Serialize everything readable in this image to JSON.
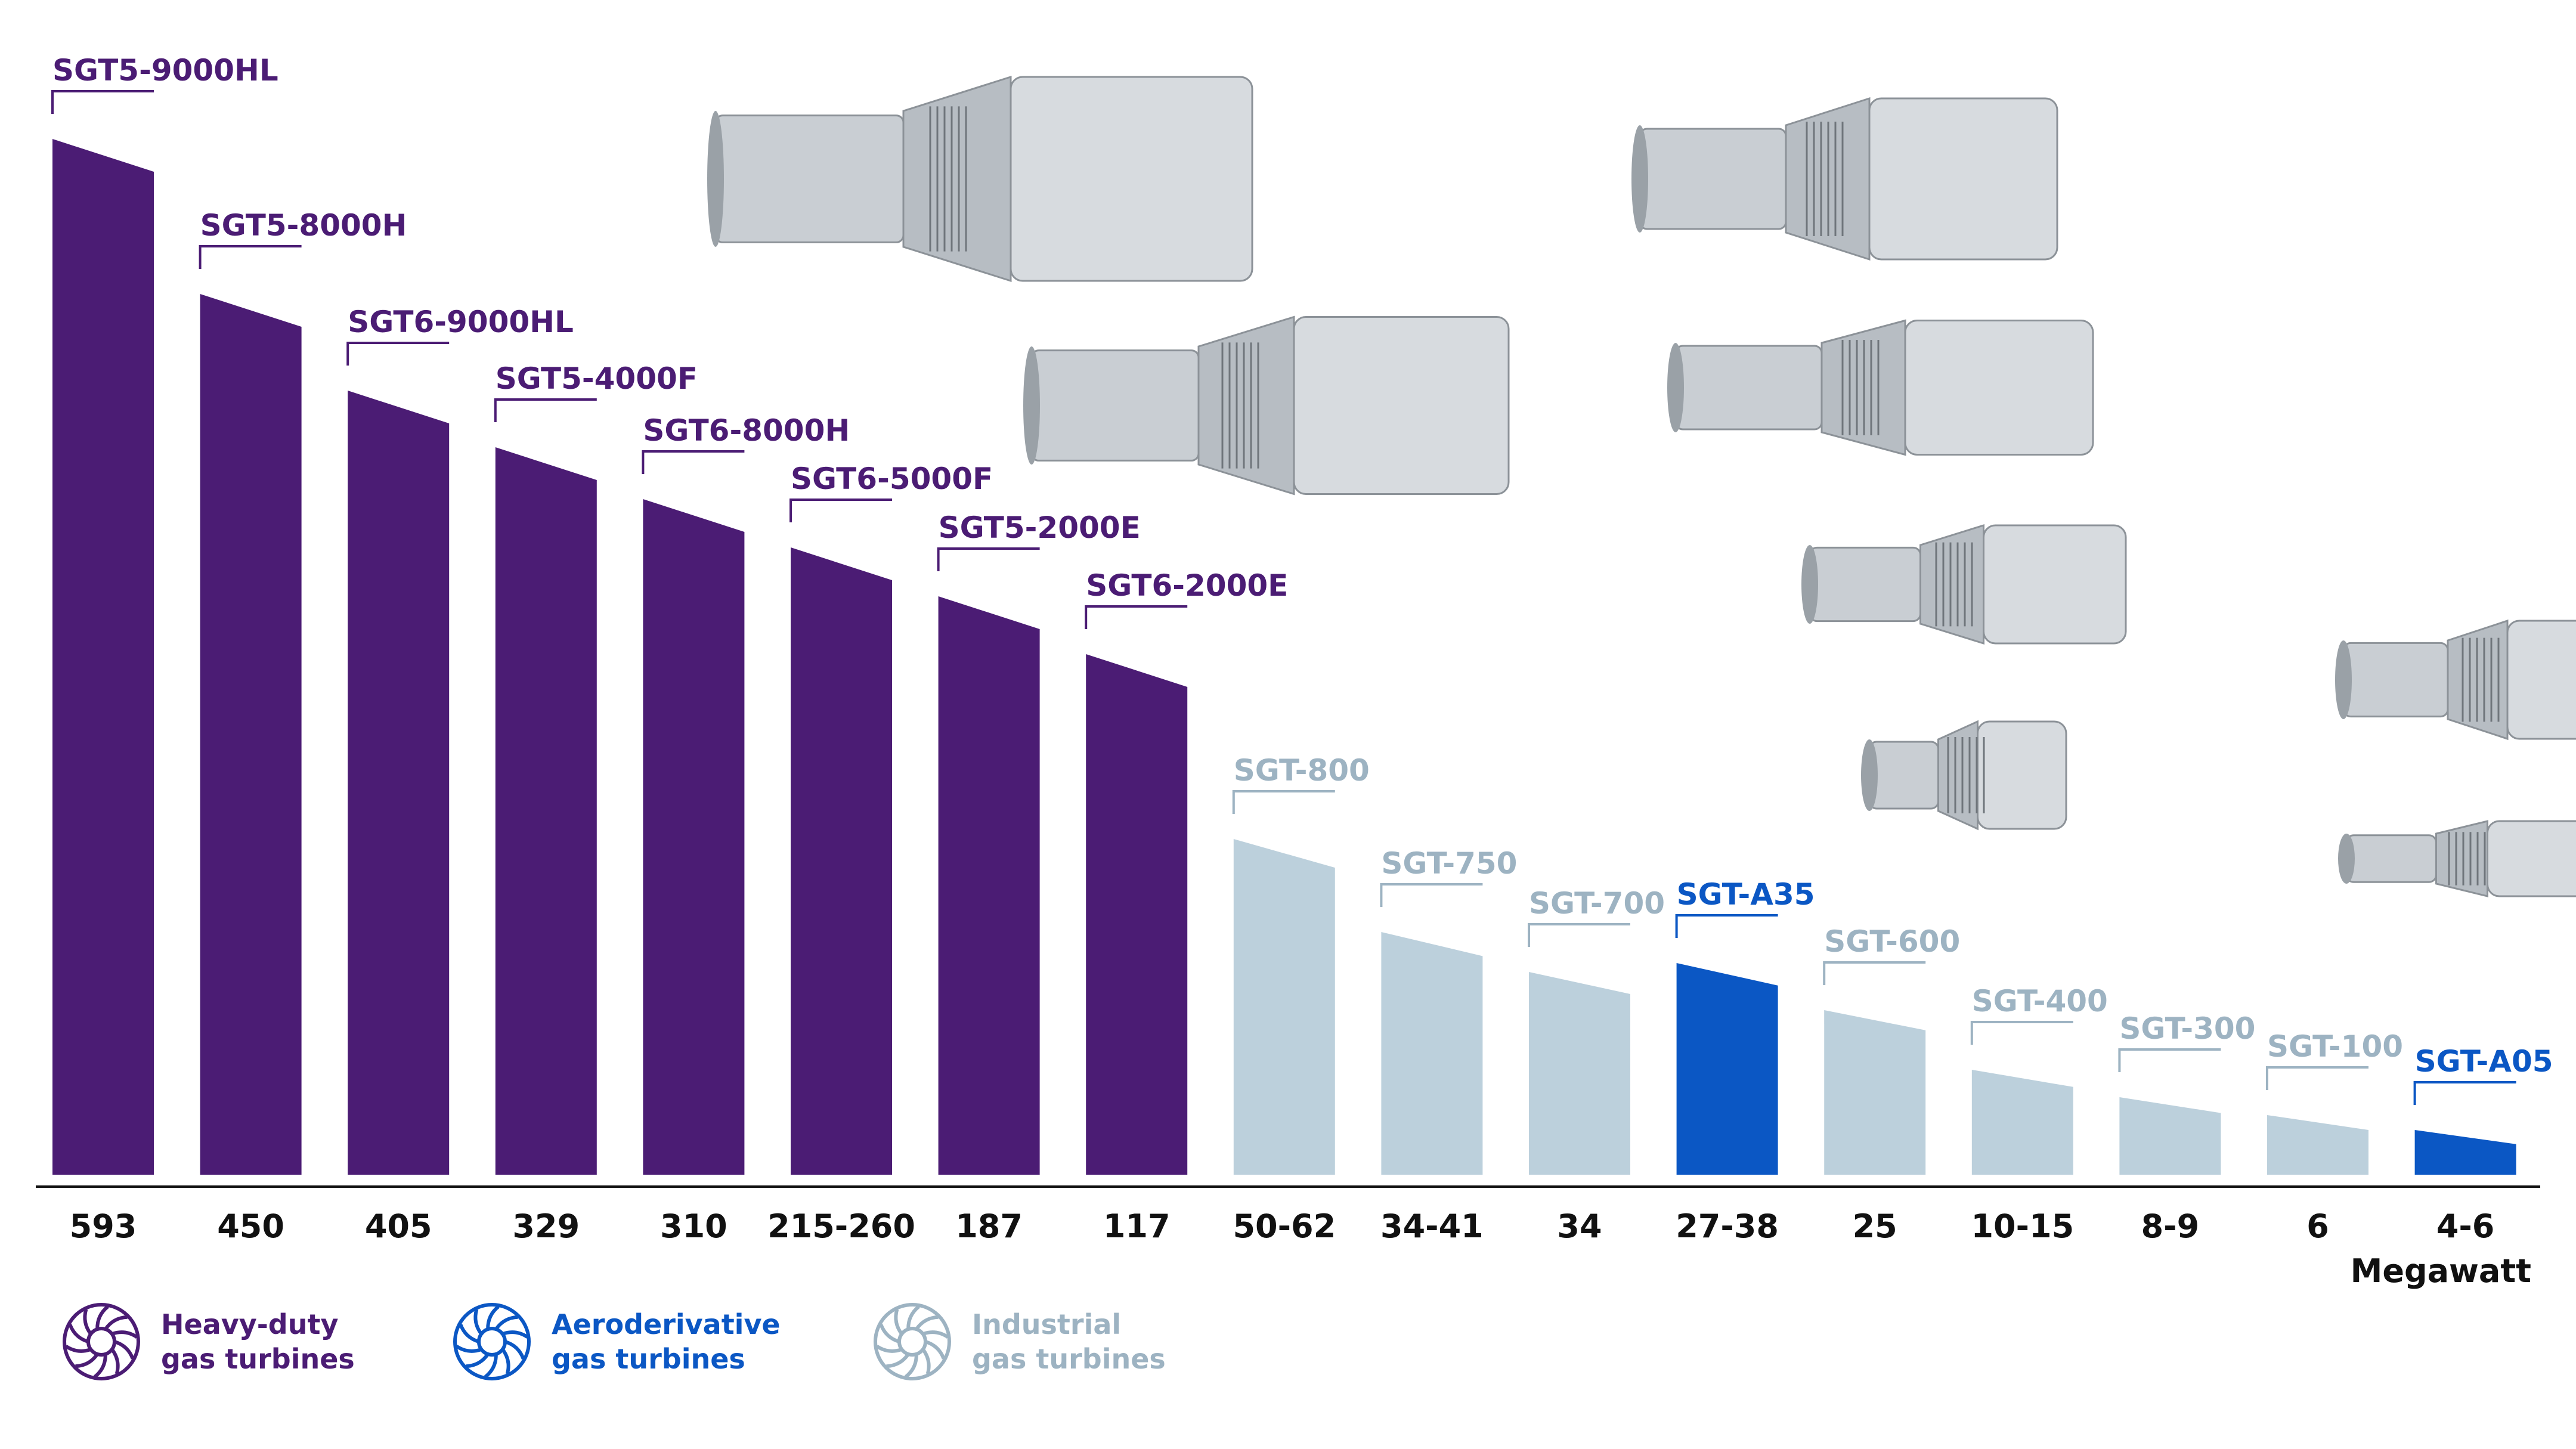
{
  "colors": {
    "heavy_duty": "#4b1c74",
    "aeroderivative": "#0b57c4",
    "industrial": "#bcd0dc",
    "industrial_text": "#9db3c2",
    "axis": "#111111",
    "value_text": "#111111",
    "turbine_metal": "#c9ced3",
    "turbine_dark": "#3a3d42"
  },
  "chart_data": {
    "type": "bar",
    "unit_label": "Megawatt",
    "bars": [
      {
        "name": "SGT5-9000HL",
        "value_label": "593",
        "value": 593,
        "category": "heavy_duty"
      },
      {
        "name": "SGT5-8000H",
        "value_label": "450",
        "value": 450,
        "category": "heavy_duty"
      },
      {
        "name": "SGT6-9000HL",
        "value_label": "405",
        "value": 405,
        "category": "heavy_duty"
      },
      {
        "name": "SGT5-4000F",
        "value_label": "329",
        "value": 329,
        "category": "heavy_duty"
      },
      {
        "name": "SGT6-8000H",
        "value_label": "310",
        "value": 310,
        "category": "heavy_duty"
      },
      {
        "name": "SGT6-5000F",
        "value_label": "215-260",
        "value": 260,
        "category": "heavy_duty"
      },
      {
        "name": "SGT5-2000E",
        "value_label": "187",
        "value": 187,
        "category": "heavy_duty"
      },
      {
        "name": "SGT6-2000E",
        "value_label": "117",
        "value": 117,
        "category": "heavy_duty"
      },
      {
        "name": "SGT-800",
        "value_label": "50-62",
        "value": 62,
        "category": "industrial"
      },
      {
        "name": "SGT-750",
        "value_label": "34-41",
        "value": 41,
        "category": "industrial"
      },
      {
        "name": "SGT-700",
        "value_label": "34",
        "value": 34,
        "category": "industrial"
      },
      {
        "name": "SGT-A35",
        "value_label": "27-38",
        "value": 38,
        "category": "aeroderivative"
      },
      {
        "name": "SGT-600",
        "value_label": "25",
        "value": 25,
        "category": "industrial"
      },
      {
        "name": "SGT-400",
        "value_label": "10-15",
        "value": 15,
        "category": "industrial"
      },
      {
        "name": "SGT-300",
        "value_label": "8-9",
        "value": 9,
        "category": "industrial"
      },
      {
        "name": "SGT-100",
        "value_label": "6",
        "value": 6,
        "category": "industrial"
      },
      {
        "name": "SGT-A05",
        "value_label": "4-6",
        "value": 6,
        "category": "aeroderivative"
      }
    ],
    "axis_scale": "non-linear (decorative, descending)"
  },
  "legend": [
    {
      "key": "heavy_duty",
      "label": "Heavy-duty\ngas turbines",
      "icon": "turbine-wheel-icon"
    },
    {
      "key": "aeroderivative",
      "label": "Aeroderivative\ngas turbines",
      "icon": "turbine-wheel-icon"
    },
    {
      "key": "industrial",
      "label": "Industrial\ngas turbines",
      "icon": "turbine-wheel-icon"
    }
  ],
  "images": [
    {
      "icon": "gas-turbine-illustration"
    },
    {
      "icon": "gas-turbine-illustration"
    },
    {
      "icon": "gas-turbine-illustration"
    },
    {
      "icon": "gas-turbine-illustration"
    },
    {
      "icon": "gas-turbine-illustration"
    },
    {
      "icon": "gas-turbine-illustration"
    },
    {
      "icon": "gas-turbine-illustration"
    },
    {
      "icon": "gas-turbine-illustration"
    }
  ]
}
